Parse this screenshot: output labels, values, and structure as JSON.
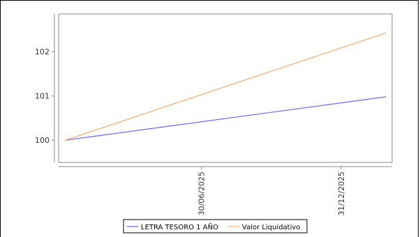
{
  "chart_data": {
    "type": "line",
    "x": [
      "2025-01-01",
      "2026-02-28"
    ],
    "x_ticks": [
      "30/06/2025",
      "31/12/2025"
    ],
    "ylim": [
      99.5,
      102.85
    ],
    "y_ticks": [
      "100",
      "101",
      "102"
    ],
    "series": [
      {
        "name": "LETRA TESORO 1 AÑO",
        "color": "#6666ff",
        "values": [
          100,
          100.98
        ]
      },
      {
        "name": "Valor Liquidativo",
        "color": "#ffaa66",
        "values": [
          100,
          102.42
        ]
      }
    ],
    "grid": false,
    "legend_position": "bottom-center"
  }
}
